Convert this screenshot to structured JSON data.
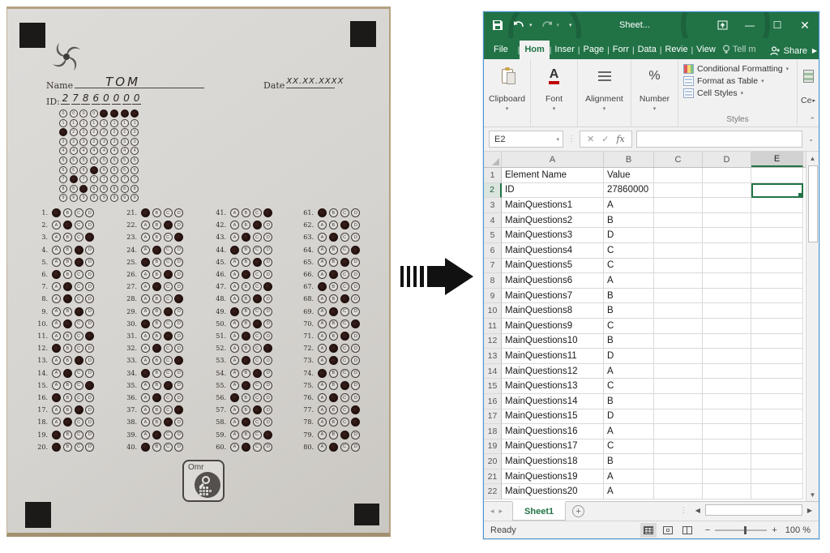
{
  "omr_sheet": {
    "name_label": "Name",
    "name_value": "TOM",
    "date_label": "Date",
    "date_value": "XX.XX.XXXX",
    "id_label": "ID:",
    "id_digits": [
      "2",
      "7",
      "8",
      "6",
      "0",
      "0",
      "0",
      "0"
    ],
    "id_grid_rows": [
      "0",
      "1",
      "2",
      "3",
      "4",
      "5",
      "6",
      "7",
      "8",
      "9"
    ],
    "bubble_options": [
      "A",
      "B",
      "C",
      "D"
    ],
    "answers": [
      "A",
      "B",
      "D",
      "C",
      "C",
      "A",
      "B",
      "B",
      "C",
      "B",
      "D",
      "A",
      "C",
      "B",
      "D",
      "A",
      "C",
      "B",
      "A",
      "A",
      "A",
      "C",
      "D",
      "B",
      "A",
      "C",
      "B",
      "D",
      "C",
      "A",
      "C",
      "B",
      "D",
      "A",
      "C",
      "B",
      "D",
      "C",
      "B",
      "A",
      "D",
      "C",
      "B",
      "A",
      "C",
      "B",
      "D",
      "C",
      "A",
      "C",
      "B",
      "D",
      "B",
      "C",
      "B",
      "A",
      "C",
      "B",
      "D",
      "B",
      "A",
      "C",
      "B",
      "D",
      "C",
      "B",
      "A",
      "C",
      "B",
      "D",
      "C",
      "B",
      "B",
      "A",
      "C",
      "B",
      "D",
      "D",
      "C",
      "B"
    ],
    "logo_text": "Omr"
  },
  "excel": {
    "title": "Sheet...",
    "tabs": [
      "File",
      "Hom",
      "Inser",
      "Page",
      "Forr",
      "Data",
      "Revie",
      "View"
    ],
    "active_tab": "Hom",
    "tell_me": "Tell m",
    "share_label": "Share",
    "ribbon_groups": [
      {
        "label": "Clipboard"
      },
      {
        "label": "Font"
      },
      {
        "label": "Alignment"
      },
      {
        "label": "Number"
      }
    ],
    "styles_items": [
      "Conditional Formatting",
      "Format as Table",
      "Cell Styles"
    ],
    "styles_label": "Styles",
    "cells_partial": "Ce",
    "name_box": "E2",
    "fx_label": "fx",
    "columns": [
      "A",
      "B",
      "C",
      "D",
      "E"
    ],
    "selected_column": "E",
    "selected_row": "2",
    "rows": [
      {
        "n": "1",
        "a": "Element Name",
        "b": "Value"
      },
      {
        "n": "2",
        "a": "ID",
        "b": "27860000"
      },
      {
        "n": "3",
        "a": "MainQuestions1",
        "b": "A"
      },
      {
        "n": "4",
        "a": "MainQuestions2",
        "b": "B"
      },
      {
        "n": "5",
        "a": "MainQuestions3",
        "b": "D"
      },
      {
        "n": "6",
        "a": "MainQuestions4",
        "b": "C"
      },
      {
        "n": "7",
        "a": "MainQuestions5",
        "b": "C"
      },
      {
        "n": "8",
        "a": "MainQuestions6",
        "b": "A"
      },
      {
        "n": "9",
        "a": "MainQuestions7",
        "b": "B"
      },
      {
        "n": "10",
        "a": "MainQuestions8",
        "b": "B"
      },
      {
        "n": "11",
        "a": "MainQuestions9",
        "b": "C"
      },
      {
        "n": "12",
        "a": "MainQuestions10",
        "b": "B"
      },
      {
        "n": "13",
        "a": "MainQuestions11",
        "b": "D"
      },
      {
        "n": "14",
        "a": "MainQuestions12",
        "b": "A"
      },
      {
        "n": "15",
        "a": "MainQuestions13",
        "b": "C"
      },
      {
        "n": "16",
        "a": "MainQuestions14",
        "b": "B"
      },
      {
        "n": "17",
        "a": "MainQuestions15",
        "b": "D"
      },
      {
        "n": "18",
        "a": "MainQuestions16",
        "b": "A"
      },
      {
        "n": "19",
        "a": "MainQuestions17",
        "b": "C"
      },
      {
        "n": "20",
        "a": "MainQuestions18",
        "b": "B"
      },
      {
        "n": "21",
        "a": "MainQuestions19",
        "b": "A"
      },
      {
        "n": "22",
        "a": "MainQuestions20",
        "b": "A"
      }
    ],
    "sheet_tab": "Sheet1",
    "status_ready": "Ready",
    "zoom_level": "100 %"
  },
  "colors": {
    "excel_green": "#217346",
    "ribbon_bg": "#f1f1f1",
    "grid_line": "#d9d9d9",
    "paper": "#d6d4d0",
    "mark_fill": "#241512"
  }
}
